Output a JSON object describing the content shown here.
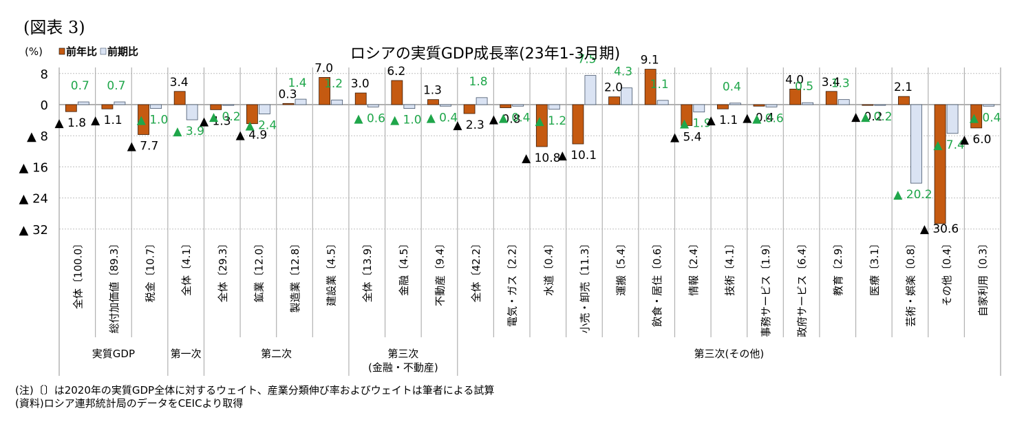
{
  "figure_label": "(図表 3)",
  "notes": {
    "note": "(注)〔〕は2020年の実質GDP全体に対するウェイト、産業分類伸び率およびウェイトは筆者による試算",
    "source": "(資料)ロシア連邦統計局のデータをCEICより取得"
  },
  "colors": {
    "yoy": "#C55A11",
    "qoq": "#DAE3F3",
    "qoq_border": "#44546A",
    "label_yoy": "#000000",
    "label_qoq": "#1FA64A",
    "grid": "#A6A6A6"
  },
  "chart_data": {
    "type": "bar",
    "title": "ロシアの実質GDP成長率(23年1-3月期)",
    "ylabel": "(%)",
    "ylim": [
      -32,
      8
    ],
    "yticks": [
      8,
      0,
      -8,
      -16,
      -24,
      -32
    ],
    "ytick_labels": [
      "8",
      "0",
      "▲ 8",
      "▲ 16",
      "▲ 24",
      "▲ 32"
    ],
    "grid": true,
    "legend_position": "top-left",
    "negative_prefix": "▲ ",
    "categories": [
      "全体〔100.0〕",
      "総付加価値〔89.3〕",
      "税金〔10.7〕",
      "全体〔4.1〕",
      "全体〔29.3〕",
      "鉱業〔12.0〕",
      "製造業〔12.8〕",
      "建設業〔4.5〕",
      "全体〔13.9〕",
      "金融〔4.5〕",
      "不動産〔9.4〕",
      "全体〔42.2〕",
      "電気・ガス〔2.2〕",
      "水道〔0.4〕",
      "小売・卸売〔11.3〕",
      "運搬〔5.4〕",
      "飲食・居住〔0.6〕",
      "情報〔2.4〕",
      "技術〔4.1〕",
      "事務サービス〔1.9〕",
      "政府サービス〔6.4〕",
      "教育〔2.9〕",
      "医療〔3.1〕",
      "芸術・娯楽〔0.8〕",
      "その他〔0.4〕",
      "自家利用〔0.3〕"
    ],
    "groups": [
      {
        "label": "実質GDP",
        "count": 3
      },
      {
        "label": "第一次",
        "count": 1
      },
      {
        "label": "第二次",
        "count": 4
      },
      {
        "label": "第三次\n(金融・不動産)",
        "count": 3
      },
      {
        "label": "第三次(その他)",
        "count": 15
      }
    ],
    "series": [
      {
        "name": "前年比",
        "values": [
          -1.8,
          -1.1,
          -7.7,
          3.4,
          -1.3,
          -4.9,
          0.3,
          7.0,
          3.0,
          6.2,
          1.3,
          -2.3,
          -0.8,
          -10.8,
          -10.1,
          2.0,
          9.1,
          -5.4,
          -1.1,
          -0.4,
          4.0,
          3.4,
          -0.2,
          2.1,
          -30.6,
          -6.0
        ]
      },
      {
        "name": "前期比",
        "values": [
          0.7,
          0.7,
          -1.0,
          -3.9,
          -0.2,
          -2.4,
          1.4,
          1.2,
          -0.6,
          -1.0,
          -0.4,
          1.8,
          -0.4,
          -1.2,
          7.5,
          4.3,
          1.1,
          -1.9,
          0.4,
          -0.6,
          0.5,
          1.3,
          -0.2,
          -20.2,
          -7.4,
          -0.4
        ]
      }
    ]
  }
}
